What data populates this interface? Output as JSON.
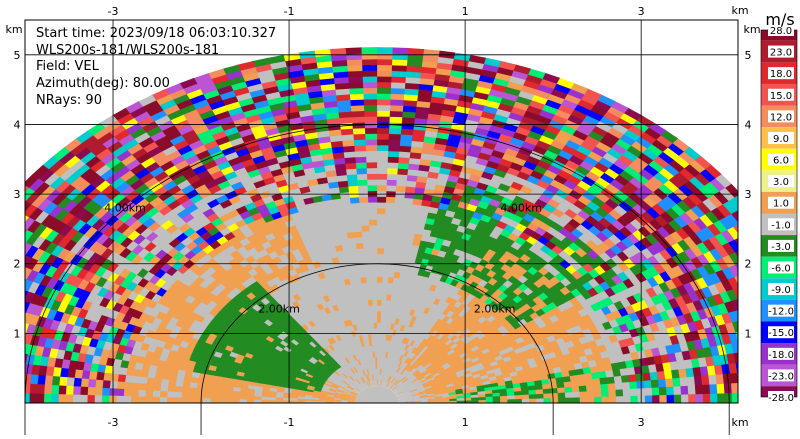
{
  "header": {
    "start_time": "Start time: 2023/09/18 06:03:10.327",
    "instrument": "WLS200s-181/WLS200s-181",
    "field": "Field: VEL",
    "azimuth": "Azimuth(deg): 80.00",
    "nrays": "NRays: 90"
  },
  "axes": {
    "x_unit": "km",
    "y_unit": "km",
    "x_ticks": [
      "-3",
      "-1",
      "1",
      "3"
    ],
    "y_ticks": [
      "1",
      "2",
      "3",
      "4",
      "5"
    ],
    "range_ring_labels": [
      "2.00km",
      "2.00km",
      "4.00km",
      "4.00km"
    ]
  },
  "colorbar": {
    "unit": "m/s",
    "labels": [
      "28.0",
      "23.0",
      "18.0",
      "15.0",
      "12.0",
      "9.0",
      "6.0",
      "3.0",
      "1.0",
      "-1.0",
      "-3.0",
      "-6.0",
      "-9.0",
      "-12.0",
      "-15.0",
      "-18.0",
      "-23.0",
      "-28.0"
    ],
    "colors": [
      "#8b0b2a",
      "#b01c2e",
      "#e0282f",
      "#f25250",
      "#f58c5e",
      "#ffc04a",
      "#ffff00",
      "#eef08c",
      "#f0a050",
      "#c0c0c0",
      "#228b22",
      "#00ee76",
      "#00cccc",
      "#1e90ff",
      "#0000ff",
      "#9932cc",
      "#ba55d3",
      "#8b0a50"
    ]
  },
  "chart_data": {
    "type": "heatmap",
    "description_field": "VEL",
    "azimuth_deg": 80.0,
    "nrays": 90,
    "xlim": [
      -4,
      4.1
    ],
    "ylim": [
      0,
      5.5
    ],
    "x_ticks": [
      -3,
      -1,
      1,
      3
    ],
    "y_ticks": [
      1,
      2,
      3,
      4,
      5
    ],
    "max_range_km": 5.1,
    "range_rings_km": [
      2,
      4
    ],
    "grid": true,
    "colorbar_range": [
      -28,
      28
    ],
    "colorbar_unit": "m/s"
  }
}
